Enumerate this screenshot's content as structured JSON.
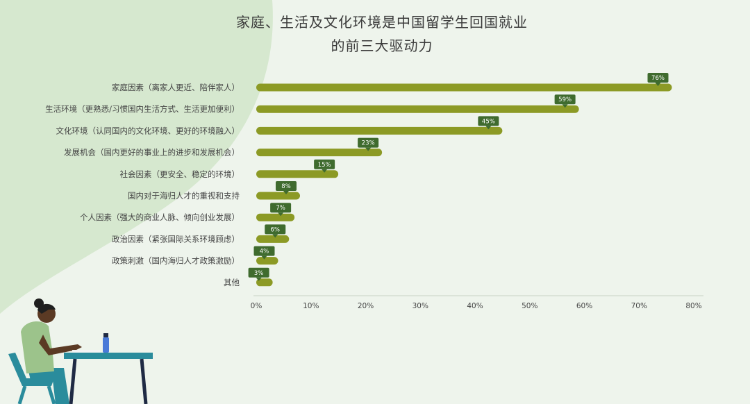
{
  "page": {
    "title_line1": "家庭、生活及文化环境是中国留学生回国就业",
    "title_line2": "的前三大驱动力"
  },
  "colors": {
    "background": "#eef4ec",
    "blob": "#d6e8cf",
    "bar": "#8c9a25",
    "label_bg": "#3f6b2e",
    "label_text": "#ffffff",
    "axis": "#c8d2c4",
    "text": "#444444"
  },
  "chart_data": {
    "type": "bar",
    "orientation": "horizontal",
    "categories": [
      "家庭因素（离家人更近、陪伴家人）",
      "生活环境（更熟悉/习惯国内生活方式、生活更加便利）",
      "文化环境（认同国内的文化环境、更好的环境融入）",
      "发展机会（国内更好的事业上的进步和发展机会）",
      "社会因素（更安全、稳定的环境）",
      "国内对于海归人才的重视和支持",
      "个人因素（强大的商业人脉、倾向创业发展）",
      "政治因素（紧张国际关系环境顾虑）",
      "政策刺激（国内海归人才政策激励）",
      "其他"
    ],
    "values": [
      76,
      59,
      45,
      23,
      15,
      8,
      7,
      6,
      4,
      3
    ],
    "data_labels": [
      "76%",
      "59%",
      "45%",
      "23%",
      "15%",
      "8%",
      "7%",
      "6%",
      "4%",
      "3%"
    ],
    "xlim": [
      0,
      80
    ],
    "ticks": [
      0,
      10,
      20,
      30,
      40,
      50,
      60,
      70,
      80
    ],
    "tick_labels": [
      "0%",
      "10%",
      "20%",
      "30%",
      "40%",
      "50%",
      "60%",
      "70%",
      "80%"
    ],
    "grid": false
  }
}
